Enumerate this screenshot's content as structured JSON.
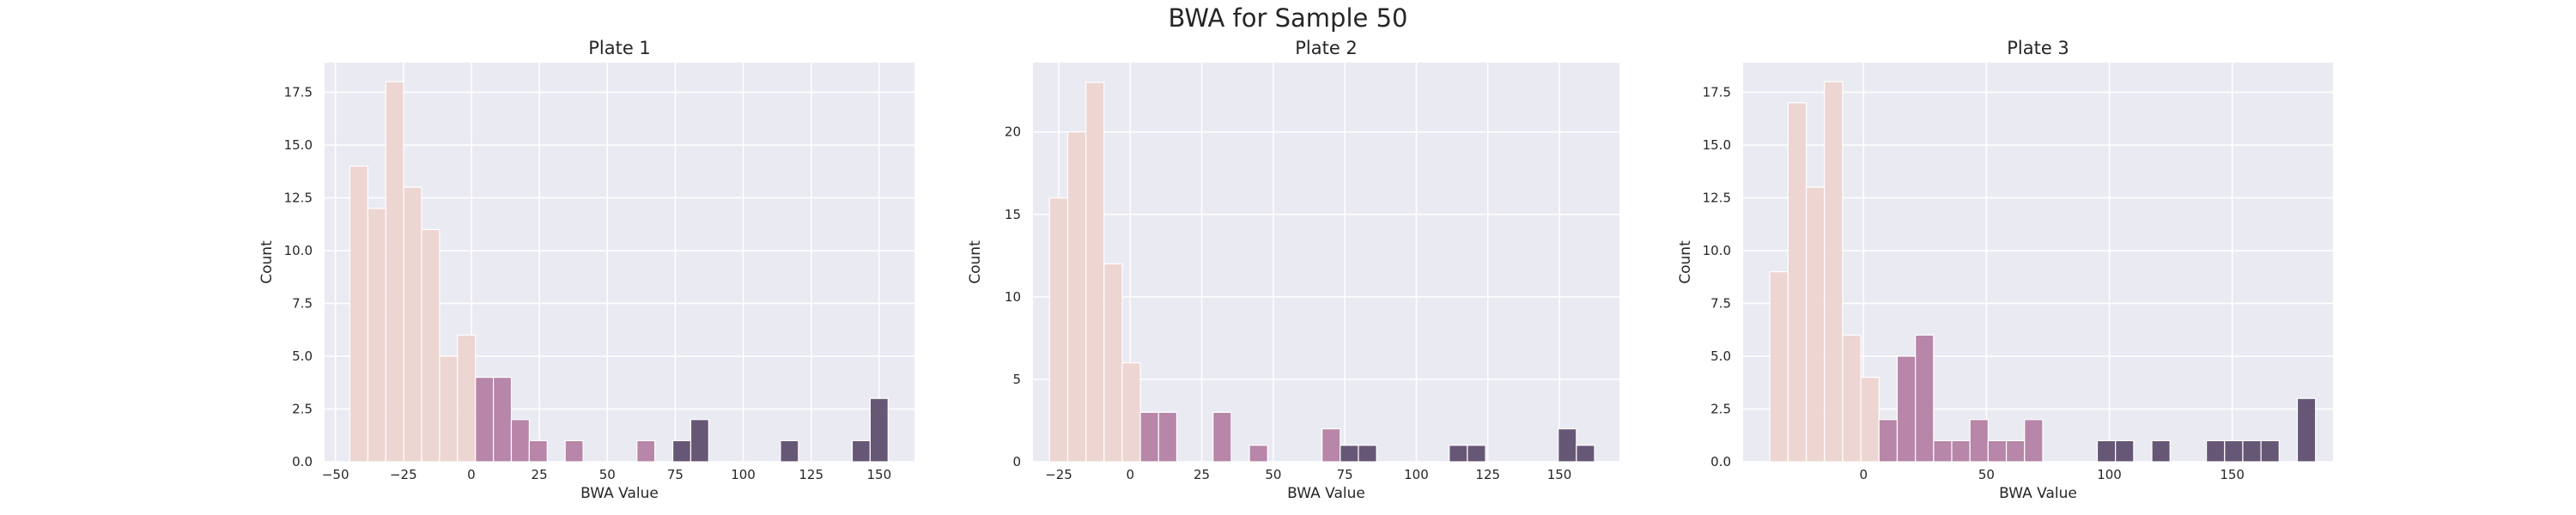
{
  "figure": {
    "title": "BWA for Sample 50"
  },
  "colors": {
    "background": "#EAEAF2",
    "grid": "#FFFFFF",
    "low": "#EDD2CF",
    "mid": "#B27DA2",
    "high": "#5B4A6B"
  },
  "chart_data": [
    {
      "type": "bar",
      "title": "Plate 1",
      "xlabel": "BWA Value",
      "ylabel": "Count",
      "xlim": [
        -54,
        163
      ],
      "ylim": [
        0,
        18.9
      ],
      "xticks": [
        -50,
        -25,
        0,
        25,
        50,
        75,
        100,
        125,
        150
      ],
      "xtick_labels": [
        "−50",
        "−25",
        "0",
        "25",
        "50",
        "75",
        "100",
        "125",
        "150"
      ],
      "yticks": [
        0,
        2.5,
        5,
        7.5,
        10,
        12.5,
        15,
        17.5
      ],
      "ytick_labels": [
        "0.0",
        "2.5",
        "5.0",
        "7.5",
        "10.0",
        "12.5",
        "15.0",
        "17.5"
      ],
      "grid": true,
      "legend": "none",
      "bin_start": -44.7,
      "bin_width": 6.6,
      "bins": [
        {
          "count": 14,
          "group": "low"
        },
        {
          "count": 12,
          "group": "low"
        },
        {
          "count": 18,
          "group": "low"
        },
        {
          "count": 13,
          "group": "low"
        },
        {
          "count": 11,
          "group": "low"
        },
        {
          "count": 5,
          "group": "low"
        },
        {
          "count": 6,
          "group": "low"
        },
        {
          "count": 4,
          "group": "mid"
        },
        {
          "count": 4,
          "group": "mid"
        },
        {
          "count": 2,
          "group": "mid"
        },
        {
          "count": 1,
          "group": "mid"
        },
        {
          "count": 0,
          "group": "mid"
        },
        {
          "count": 1,
          "group": "mid"
        },
        {
          "count": 0,
          "group": "mid"
        },
        {
          "count": 0,
          "group": "mid"
        },
        {
          "count": 0,
          "group": "mid"
        },
        {
          "count": 1,
          "group": "mid"
        },
        {
          "count": 0,
          "group": "mid"
        },
        {
          "count": 1,
          "group": "high"
        },
        {
          "count": 2,
          "group": "high"
        },
        {
          "count": 0,
          "group": "high"
        },
        {
          "count": 0,
          "group": "high"
        },
        {
          "count": 0,
          "group": "high"
        },
        {
          "count": 0,
          "group": "high"
        },
        {
          "count": 1,
          "group": "high"
        },
        {
          "count": 0,
          "group": "high"
        },
        {
          "count": 0,
          "group": "high"
        },
        {
          "count": 0,
          "group": "high"
        },
        {
          "count": 1,
          "group": "high"
        },
        {
          "count": 3,
          "group": "high"
        }
      ]
    },
    {
      "type": "bar",
      "title": "Plate 2",
      "xlabel": "BWA Value",
      "ylabel": "Count",
      "xlim": [
        -34,
        171
      ],
      "ylim": [
        0,
        24.2
      ],
      "xticks": [
        -25,
        0,
        25,
        50,
        75,
        100,
        125,
        150
      ],
      "xtick_labels": [
        "−25",
        "0",
        "25",
        "50",
        "75",
        "100",
        "125",
        "150"
      ],
      "yticks": [
        0,
        5,
        10,
        15,
        20
      ],
      "ytick_labels": [
        "0",
        "5",
        "10",
        "15",
        "20"
      ],
      "grid": true,
      "legend": "none",
      "bin_start": -28.2,
      "bin_width": 6.35,
      "bins": [
        {
          "count": 16,
          "group": "low"
        },
        {
          "count": 20,
          "group": "low"
        },
        {
          "count": 23,
          "group": "low"
        },
        {
          "count": 12,
          "group": "low"
        },
        {
          "count": 6,
          "group": "low"
        },
        {
          "count": 3,
          "group": "mid"
        },
        {
          "count": 3,
          "group": "mid"
        },
        {
          "count": 0,
          "group": "mid"
        },
        {
          "count": 0,
          "group": "mid"
        },
        {
          "count": 3,
          "group": "mid"
        },
        {
          "count": 0,
          "group": "mid"
        },
        {
          "count": 1,
          "group": "mid"
        },
        {
          "count": 0,
          "group": "mid"
        },
        {
          "count": 0,
          "group": "mid"
        },
        {
          "count": 0,
          "group": "mid"
        },
        {
          "count": 2,
          "group": "mid"
        },
        {
          "count": 1,
          "group": "high"
        },
        {
          "count": 1,
          "group": "high"
        },
        {
          "count": 0,
          "group": "high"
        },
        {
          "count": 0,
          "group": "high"
        },
        {
          "count": 0,
          "group": "high"
        },
        {
          "count": 0,
          "group": "high"
        },
        {
          "count": 1,
          "group": "high"
        },
        {
          "count": 1,
          "group": "high"
        },
        {
          "count": 0,
          "group": "high"
        },
        {
          "count": 0,
          "group": "high"
        },
        {
          "count": 0,
          "group": "high"
        },
        {
          "count": 0,
          "group": "high"
        },
        {
          "count": 2,
          "group": "high"
        },
        {
          "count": 1,
          "group": "high"
        }
      ]
    },
    {
      "type": "bar",
      "title": "Plate 3",
      "xlabel": "BWA Value",
      "ylabel": "Count",
      "xlim": [
        -49,
        191
      ],
      "ylim": [
        0,
        18.9
      ],
      "xticks": [
        0,
        50,
        100,
        150
      ],
      "xtick_labels": [
        "0",
        "50",
        "100",
        "150"
      ],
      "yticks": [
        0,
        2.5,
        5,
        7.5,
        10,
        12.5,
        15,
        17.5
      ],
      "ytick_labels": [
        "0.0",
        "2.5",
        "5.0",
        "7.5",
        "10.0",
        "12.5",
        "15.0",
        "17.5"
      ],
      "grid": true,
      "legend": "none",
      "bin_start": -38.1,
      "bin_width": 7.4,
      "bins": [
        {
          "count": 9,
          "group": "low"
        },
        {
          "count": 17,
          "group": "low"
        },
        {
          "count": 13,
          "group": "low"
        },
        {
          "count": 18,
          "group": "low"
        },
        {
          "count": 6,
          "group": "low"
        },
        {
          "count": 4,
          "group": "low"
        },
        {
          "count": 2,
          "group": "mid"
        },
        {
          "count": 5,
          "group": "mid"
        },
        {
          "count": 6,
          "group": "mid"
        },
        {
          "count": 1,
          "group": "mid"
        },
        {
          "count": 1,
          "group": "mid"
        },
        {
          "count": 2,
          "group": "mid"
        },
        {
          "count": 1,
          "group": "mid"
        },
        {
          "count": 1,
          "group": "mid"
        },
        {
          "count": 2,
          "group": "mid"
        },
        {
          "count": 0,
          "group": "mid"
        },
        {
          "count": 0,
          "group": "mid"
        },
        {
          "count": 0,
          "group": "high"
        },
        {
          "count": 1,
          "group": "high"
        },
        {
          "count": 1,
          "group": "high"
        },
        {
          "count": 0,
          "group": "high"
        },
        {
          "count": 1,
          "group": "high"
        },
        {
          "count": 0,
          "group": "high"
        },
        {
          "count": 0,
          "group": "high"
        },
        {
          "count": 1,
          "group": "high"
        },
        {
          "count": 1,
          "group": "high"
        },
        {
          "count": 1,
          "group": "high"
        },
        {
          "count": 1,
          "group": "high"
        },
        {
          "count": 0,
          "group": "high"
        },
        {
          "count": 3,
          "group": "high"
        }
      ]
    }
  ]
}
